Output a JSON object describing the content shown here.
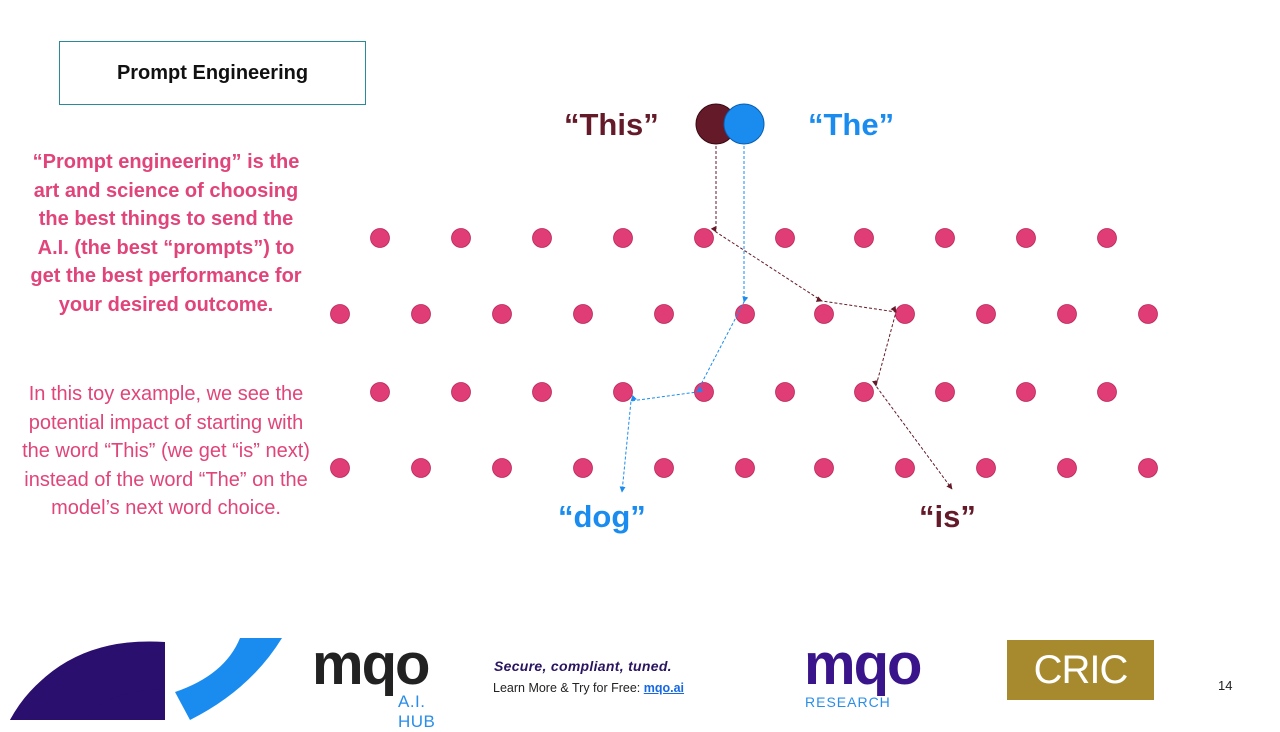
{
  "slide": {
    "title": "Prompt Engineering",
    "paragraph_bold": "“Prompt engineering” is the art and science of choosing the best things to send the A.I. (the best “prompts”) to get the best performance for your desired outcome.",
    "paragraph_normal": "In this toy example, we see the potential impact of starting with the word “This” (we get “is” next) instead of the word “The” on the model’s next word choice.",
    "page_number": "14"
  },
  "diagram": {
    "words": {
      "this": "“This”",
      "the": "“The”",
      "dog": "“dog”",
      "is": "“is”"
    },
    "colors": {
      "this": "#641a28",
      "the": "#1a8cf0",
      "dots": "#e03c75"
    }
  },
  "footer": {
    "hub_logo": "mqo",
    "hub_sub": "A.I. HUB",
    "tagline": "Secure, compliant, tuned.",
    "learn_text": "Learn More & Try for Free: ",
    "learn_link": "mqo.ai",
    "research_logo": "mqo",
    "research_sub": "RESEARCH",
    "cric_logo": "CRIC"
  }
}
